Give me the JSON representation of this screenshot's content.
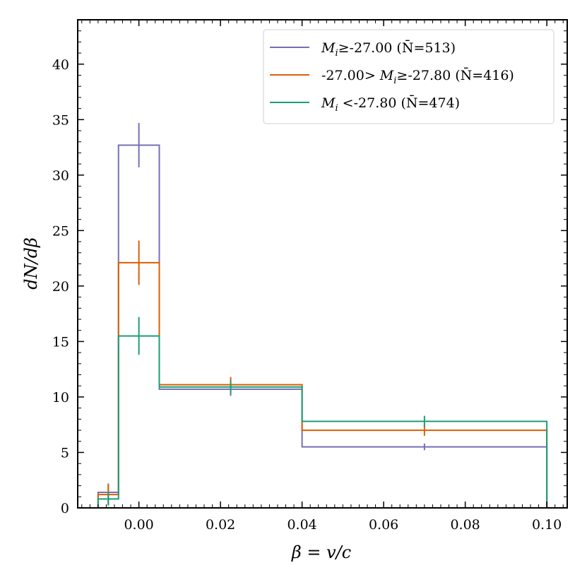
{
  "chart_data": {
    "type": "histogram",
    "xlabel": "β = v/c",
    "ylabel": "dN/dβ",
    "xlim": [
      -0.015,
      0.105
    ],
    "ylim": [
      0,
      44
    ],
    "grid": false,
    "legend_position": "top-right",
    "bin_edges": [
      -0.01,
      -0.005,
      0.005,
      0.04,
      0.1
    ],
    "bin_centers": [
      -0.0075,
      0.0,
      0.0225,
      0.07
    ],
    "x_ticks": [
      0.0,
      0.02,
      0.04,
      0.06,
      0.08,
      0.1
    ],
    "x_tick_labels": [
      "0.00",
      "0.02",
      "0.04",
      "0.06",
      "0.08",
      "0.10"
    ],
    "y_ticks": [
      0,
      5,
      10,
      15,
      20,
      25,
      30,
      35,
      40
    ],
    "y_tick_labels": [
      "0",
      "5",
      "10",
      "15",
      "20",
      "25",
      "30",
      "35",
      "40"
    ],
    "series": [
      {
        "name": "Mi≥-27.00 (N̄=513)",
        "legend_prefix": "",
        "legend_var": "M",
        "legend_sub": "i",
        "legend_suffix": "≥-27.00 (N̄=513)",
        "color": "#7570b3",
        "values": [
          1.4,
          32.7,
          10.7,
          5.5
        ],
        "errors": [
          0.8,
          2.0,
          0.6,
          0.3
        ]
      },
      {
        "name": "-27.00> Mi≥-27.80 (N̄=416)",
        "legend_prefix": "-27.00> ",
        "legend_var": "M",
        "legend_sub": "i",
        "legend_suffix": "≥-27.80 (N̄=416)",
        "color": "#d95f02",
        "values": [
          1.2,
          22.1,
          11.1,
          7.0
        ],
        "errors": [
          0.9,
          2.0,
          0.7,
          0.5
        ]
      },
      {
        "name": "Mi <-27.80 (N̄=474)",
        "legend_prefix": "",
        "legend_var": "M",
        "legend_sub": "i",
        "legend_suffix": " <-27.80 (N̄=474)",
        "color": "#1b9e77",
        "values": [
          0.8,
          15.5,
          10.9,
          7.8
        ],
        "errors": [
          0.6,
          1.7,
          0.6,
          0.5
        ]
      }
    ]
  }
}
